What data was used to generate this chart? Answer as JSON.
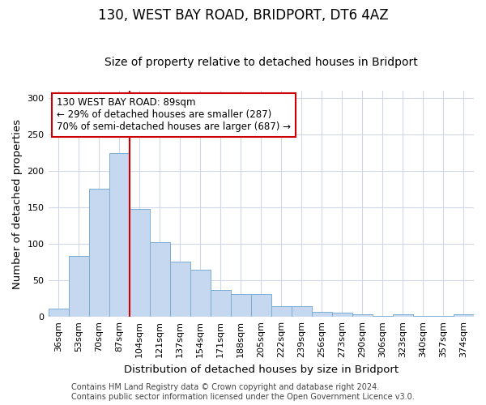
{
  "title": "130, WEST BAY ROAD, BRIDPORT, DT6 4AZ",
  "subtitle": "Size of property relative to detached houses in Bridport",
  "xlabel": "Distribution of detached houses by size in Bridport",
  "ylabel": "Number of detached properties",
  "bar_labels": [
    "36sqm",
    "53sqm",
    "70sqm",
    "87sqm",
    "104sqm",
    "121sqm",
    "137sqm",
    "154sqm",
    "171sqm",
    "188sqm",
    "205sqm",
    "222sqm",
    "239sqm",
    "256sqm",
    "273sqm",
    "290sqm",
    "306sqm",
    "323sqm",
    "340sqm",
    "357sqm",
    "374sqm"
  ],
  "bar_values": [
    11,
    83,
    176,
    224,
    148,
    102,
    76,
    65,
    37,
    31,
    31,
    15,
    15,
    7,
    6,
    4,
    1,
    4,
    1,
    1,
    4
  ],
  "bar_color": "#c5d8f0",
  "bar_edge_color": "#7bafd4",
  "grid_color": "#d0d8e8",
  "vline_color": "#cc0000",
  "vline_x_index": 3.5,
  "annotation_text": "130 WEST BAY ROAD: 89sqm\n← 29% of detached houses are smaller (287)\n70% of semi-detached houses are larger (687) →",
  "annotation_box_color": "white",
  "annotation_box_edge": "#cc0000",
  "footer_line1": "Contains HM Land Registry data © Crown copyright and database right 2024.",
  "footer_line2": "Contains public sector information licensed under the Open Government Licence v3.0.",
  "ylim": [
    0,
    310
  ],
  "yticks": [
    0,
    50,
    100,
    150,
    200,
    250,
    300
  ],
  "title_fontsize": 12,
  "subtitle_fontsize": 10,
  "axis_label_fontsize": 9.5,
  "tick_fontsize": 8,
  "footer_fontsize": 7,
  "annotation_fontsize": 8.5
}
